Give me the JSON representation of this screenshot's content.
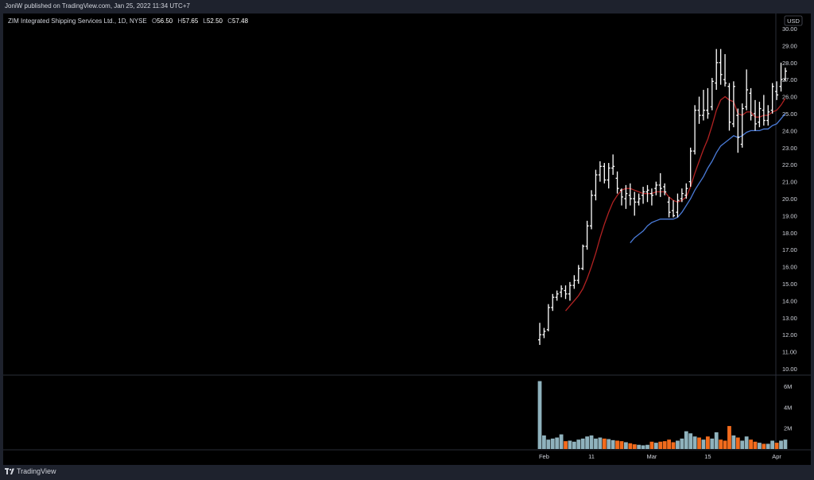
{
  "header": {
    "published": "JoniW published on TradingView.com, Jan 25, 2022 11:34 UTC+7"
  },
  "legend": {
    "title": "ZIM Integrated Shipping Services Ltd., 1D, NYSE",
    "open_key": "O",
    "open": "56.50",
    "high_key": "H",
    "high": "57.65",
    "low_key": "L",
    "low": "52.50",
    "close_key": "C",
    "close": "57.48"
  },
  "currency": "USD",
  "footer": {
    "brand": "TradingView"
  },
  "colors": {
    "background": "#000000",
    "bar": "#ffffff",
    "ma_fast": "#b22222",
    "ma_slow": "#4a7bd8",
    "volume_up": "#8fb2bd",
    "volume_down": "#f26b1d",
    "axis_text": "#d1d4dc",
    "separator": "#2a2e39"
  },
  "chart_data": {
    "type": "ohlc",
    "price_axis": {
      "min": 10.0,
      "max": 30.0,
      "step": 1.0,
      "side": "right"
    },
    "price_ticks": [
      "10.00",
      "11.00",
      "12.00",
      "13.00",
      "14.00",
      "15.00",
      "16.00",
      "17.00",
      "18.00",
      "19.00",
      "20.00",
      "21.00",
      "22.00",
      "23.00",
      "24.00",
      "25.00",
      "26.00",
      "27.00",
      "28.00",
      "29.00",
      "30.00"
    ],
    "time_ticks": [
      "Feb",
      "11",
      "Mar",
      "15",
      "Apr"
    ],
    "time_tick_index": [
      1,
      12,
      26,
      39,
      55
    ],
    "volume_axis": {
      "max": 7000000,
      "ticks": [
        "2M",
        "4M",
        "6M"
      ],
      "tick_values": [
        2000000,
        4000000,
        6000000
      ]
    },
    "bars": [
      [
        11.7,
        12.7,
        11.4,
        12.0
      ],
      [
        12.0,
        12.4,
        11.8,
        12.2
      ],
      [
        12.3,
        13.8,
        12.2,
        13.6
      ],
      [
        13.6,
        14.4,
        13.4,
        14.2
      ],
      [
        14.2,
        14.6,
        14.0,
        14.4
      ],
      [
        14.5,
        14.9,
        14.2,
        14.7
      ],
      [
        14.6,
        14.9,
        14.1,
        14.4
      ],
      [
        14.4,
        15.1,
        14.0,
        14.9
      ],
      [
        14.9,
        15.5,
        14.7,
        15.2
      ],
      [
        15.2,
        16.1,
        15.0,
        15.9
      ],
      [
        15.9,
        17.3,
        15.8,
        17.2
      ],
      [
        17.2,
        18.7,
        17.0,
        18.4
      ],
      [
        18.4,
        20.5,
        18.2,
        20.2
      ],
      [
        20.2,
        21.7,
        19.9,
        21.4
      ],
      [
        21.4,
        22.2,
        21.0,
        21.9
      ],
      [
        21.9,
        22.1,
        20.9,
        21.1
      ],
      [
        21.1,
        22.1,
        20.6,
        21.8
      ],
      [
        21.8,
        22.6,
        21.4,
        21.9
      ],
      [
        21.2,
        21.6,
        20.3,
        20.6
      ],
      [
        20.5,
        20.6,
        19.6,
        20.1
      ],
      [
        20.0,
        20.8,
        19.4,
        20.3
      ],
      [
        20.2,
        20.9,
        19.6,
        20.0
      ],
      [
        20.0,
        20.4,
        19.0,
        19.8
      ],
      [
        19.8,
        20.3,
        19.6,
        20.0
      ],
      [
        20.2,
        20.7,
        19.7,
        20.4
      ],
      [
        20.4,
        20.8,
        19.8,
        20.5
      ],
      [
        20.3,
        20.6,
        19.6,
        20.2
      ],
      [
        20.6,
        21.0,
        20.2,
        20.8
      ],
      [
        20.8,
        21.5,
        20.1,
        20.6
      ],
      [
        20.7,
        20.9,
        20.2,
        20.4
      ],
      [
        19.8,
        20.1,
        18.9,
        19.2
      ],
      [
        19.3,
        19.9,
        18.9,
        19.0
      ],
      [
        19.2,
        20.3,
        18.9,
        19.9
      ],
      [
        20.0,
        20.6,
        19.8,
        20.3
      ],
      [
        20.2,
        20.9,
        20.0,
        20.6
      ],
      [
        21.0,
        23.0,
        20.7,
        22.8
      ],
      [
        22.8,
        25.5,
        22.6,
        25.2
      ],
      [
        25.2,
        26.0,
        24.4,
        24.9
      ],
      [
        24.9,
        26.4,
        24.6,
        25.2
      ],
      [
        25.2,
        26.5,
        24.7,
        25.0
      ],
      [
        25.4,
        27.1,
        25.2,
        26.9
      ],
      [
        26.8,
        28.8,
        26.4,
        28.0
      ],
      [
        28.0,
        28.8,
        26.7,
        27.3
      ],
      [
        27.0,
        28.5,
        26.6,
        26.8
      ],
      [
        26.6,
        26.8,
        24.0,
        24.5
      ],
      [
        24.4,
        26.9,
        24.2,
        26.6
      ],
      [
        24.9,
        25.3,
        22.7,
        23.6
      ],
      [
        23.2,
        25.6,
        23.0,
        25.3
      ],
      [
        25.4,
        27.6,
        25.2,
        26.4
      ],
      [
        26.2,
        26.5,
        24.6,
        24.9
      ],
      [
        25.0,
        25.8,
        24.0,
        24.4
      ],
      [
        24.5,
        25.7,
        24.2,
        25.3
      ],
      [
        25.2,
        26.1,
        24.3,
        24.6
      ],
      [
        24.6,
        25.5,
        24.3,
        25.1
      ],
      [
        25.2,
        26.8,
        25.0,
        26.6
      ],
      [
        26.3,
        26.9,
        25.8,
        26.1
      ],
      [
        26.6,
        28.0,
        26.3,
        27.0
      ],
      [
        27.0,
        27.7,
        26.9,
        27.5
      ]
    ],
    "volume_m": [
      6.5,
      1.3,
      0.9,
      1.0,
      1.1,
      1.4,
      0.75,
      0.8,
      0.7,
      0.9,
      1.0,
      1.2,
      1.3,
      1.0,
      1.1,
      1.0,
      0.95,
      0.85,
      0.8,
      0.75,
      0.65,
      0.55,
      0.45,
      0.4,
      0.35,
      0.4,
      0.7,
      0.6,
      0.7,
      0.75,
      0.9,
      0.65,
      0.8,
      1.0,
      1.7,
      1.5,
      1.2,
      1.1,
      0.9,
      1.2,
      1.0,
      1.6,
      0.9,
      0.8,
      2.2,
      1.3,
      1.1,
      0.8,
      1.2,
      0.9,
      0.7,
      0.6,
      0.5,
      0.5,
      0.8,
      0.6,
      0.8,
      0.9
    ],
    "ma_fast": [
      null,
      null,
      null,
      null,
      null,
      null,
      13.4,
      13.7,
      14.0,
      14.3,
      14.7,
      15.3,
      16.0,
      16.8,
      17.7,
      18.5,
      19.2,
      19.8,
      20.2,
      20.5,
      20.6,
      20.6,
      20.5,
      20.4,
      20.3,
      20.3,
      20.3,
      20.4,
      20.4,
      20.4,
      20.1,
      19.9,
      19.8,
      19.9,
      20.1,
      20.7,
      21.5,
      22.2,
      22.9,
      23.5,
      24.3,
      25.2,
      25.8,
      26.0,
      25.8,
      25.7,
      25.0,
      24.9,
      25.1,
      25.1,
      24.8,
      24.8,
      24.9,
      24.9,
      25.1,
      25.2,
      25.5,
      25.9
    ],
    "ma_slow": [
      null,
      null,
      null,
      null,
      null,
      null,
      null,
      null,
      null,
      null,
      null,
      null,
      null,
      null,
      null,
      null,
      null,
      null,
      null,
      null,
      null,
      17.4,
      17.7,
      17.9,
      18.1,
      18.4,
      18.6,
      18.7,
      18.8,
      18.8,
      18.8,
      18.8,
      18.9,
      19.2,
      19.6,
      20.0,
      20.5,
      20.9,
      21.3,
      21.8,
      22.2,
      22.7,
      23.1,
      23.3,
      23.5,
      23.7,
      23.6,
      23.7,
      23.9,
      24.0,
      24.0,
      24.0,
      24.1,
      24.1,
      24.3,
      24.4,
      24.7,
      25.0
    ]
  }
}
